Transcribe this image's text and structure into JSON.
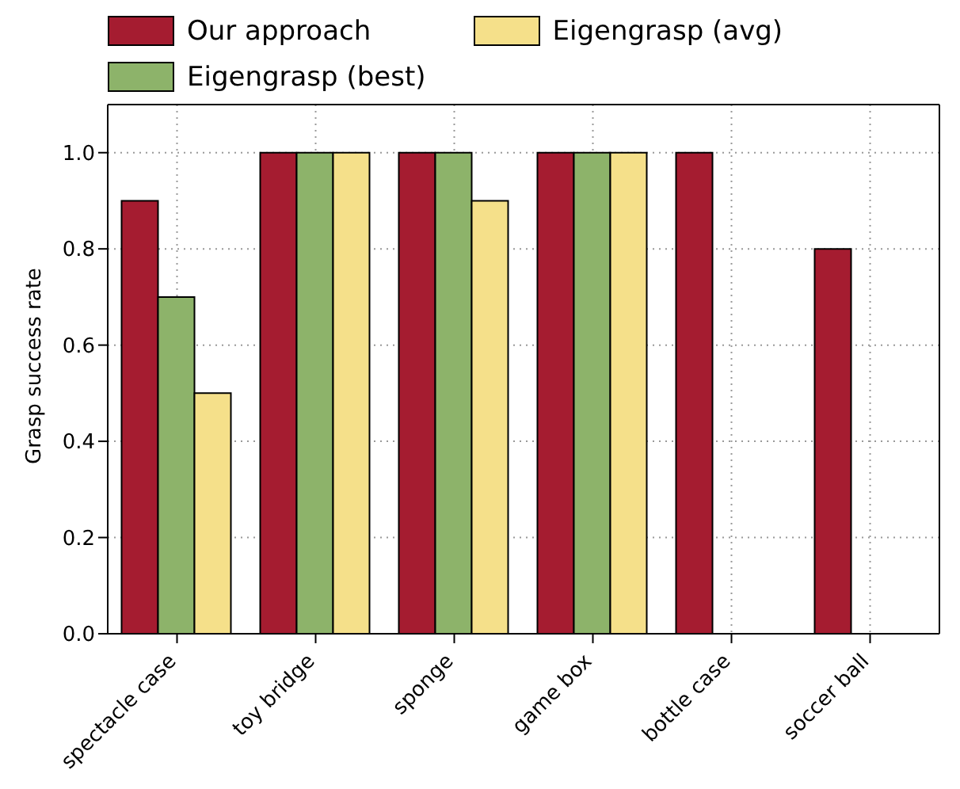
{
  "chart_data": {
    "type": "bar",
    "ylabel": "Grasp success rate",
    "categories": [
      "spectacle case",
      "toy bridge",
      "sponge",
      "game box",
      "bottle case",
      "soccer ball"
    ],
    "series": [
      {
        "name": "Our approach",
        "color": "#a51c30",
        "values": [
          0.9,
          1.0,
          1.0,
          1.0,
          1.0,
          0.8
        ]
      },
      {
        "name": "Eigengrasp (best)",
        "color": "#8db36a",
        "values": [
          0.7,
          1.0,
          1.0,
          1.0,
          null,
          null
        ]
      },
      {
        "name": "Eigengrasp (avg)",
        "color": "#f5e08a",
        "values": [
          0.5,
          1.0,
          0.9,
          1.0,
          null,
          null
        ]
      }
    ],
    "ylim": [
      0,
      1.1
    ],
    "yticks": [
      {
        "value": 0,
        "label": "0.0"
      },
      {
        "value": 0.2,
        "label": "0.2"
      },
      {
        "value": 0.4,
        "label": "0.4"
      },
      {
        "value": 0.6,
        "label": "0.6"
      },
      {
        "value": 0.8,
        "label": "0.8"
      },
      {
        "value": 1,
        "label": "1.0"
      }
    ],
    "grid": true,
    "legend": "top left"
  }
}
